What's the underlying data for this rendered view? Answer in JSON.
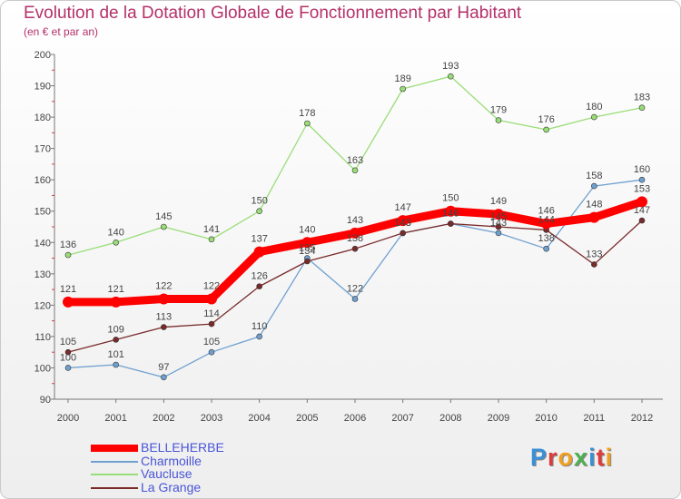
{
  "header": {
    "title": "Evolution de la Dotation Globale de Fonctionnement par Habitant",
    "subtitle": "(en € et par an)"
  },
  "logo": {
    "text": "Proxiti",
    "letter_colors": [
      "#3a8fd6",
      "#e03b3b",
      "#f0a020",
      "#4caf50",
      "#3a8fd6",
      "#e03b3b",
      "#f0a020"
    ]
  },
  "chart_data": {
    "type": "line",
    "x": [
      "2000",
      "2001",
      "2002",
      "2003",
      "2004",
      "2005",
      "2006",
      "2007",
      "2008",
      "2009",
      "2010",
      "2011",
      "2012"
    ],
    "ylim": [
      90,
      200
    ],
    "yticks": [
      90,
      100,
      110,
      120,
      130,
      140,
      150,
      160,
      170,
      180,
      190,
      200
    ],
    "grid": false,
    "legend_position": "bottom-left",
    "series": [
      {
        "name": "BELLEHERBE",
        "color": "#ff0000",
        "emphasis": true,
        "labels": true,
        "values": [
          121,
          121,
          122,
          122,
          137,
          140,
          143,
          147,
          150,
          149,
          146,
          148,
          153
        ]
      },
      {
        "name": "Charmoille",
        "color": "#6fa0d0",
        "labels": true,
        "values": [
          100,
          101,
          97,
          105,
          110,
          135,
          122,
          143,
          146,
          143,
          138,
          158,
          160
        ]
      },
      {
        "name": "Vaucluse",
        "color": "#99dd77",
        "labels": true,
        "values": [
          136,
          140,
          145,
          141,
          150,
          178,
          163,
          189,
          193,
          179,
          176,
          180,
          183
        ]
      },
      {
        "name": "La Grange",
        "color": "#7a2a2a",
        "labels": true,
        "values": [
          105,
          109,
          113,
          114,
          126,
          134,
          138,
          143,
          146,
          145,
          144,
          133,
          147
        ]
      }
    ]
  }
}
